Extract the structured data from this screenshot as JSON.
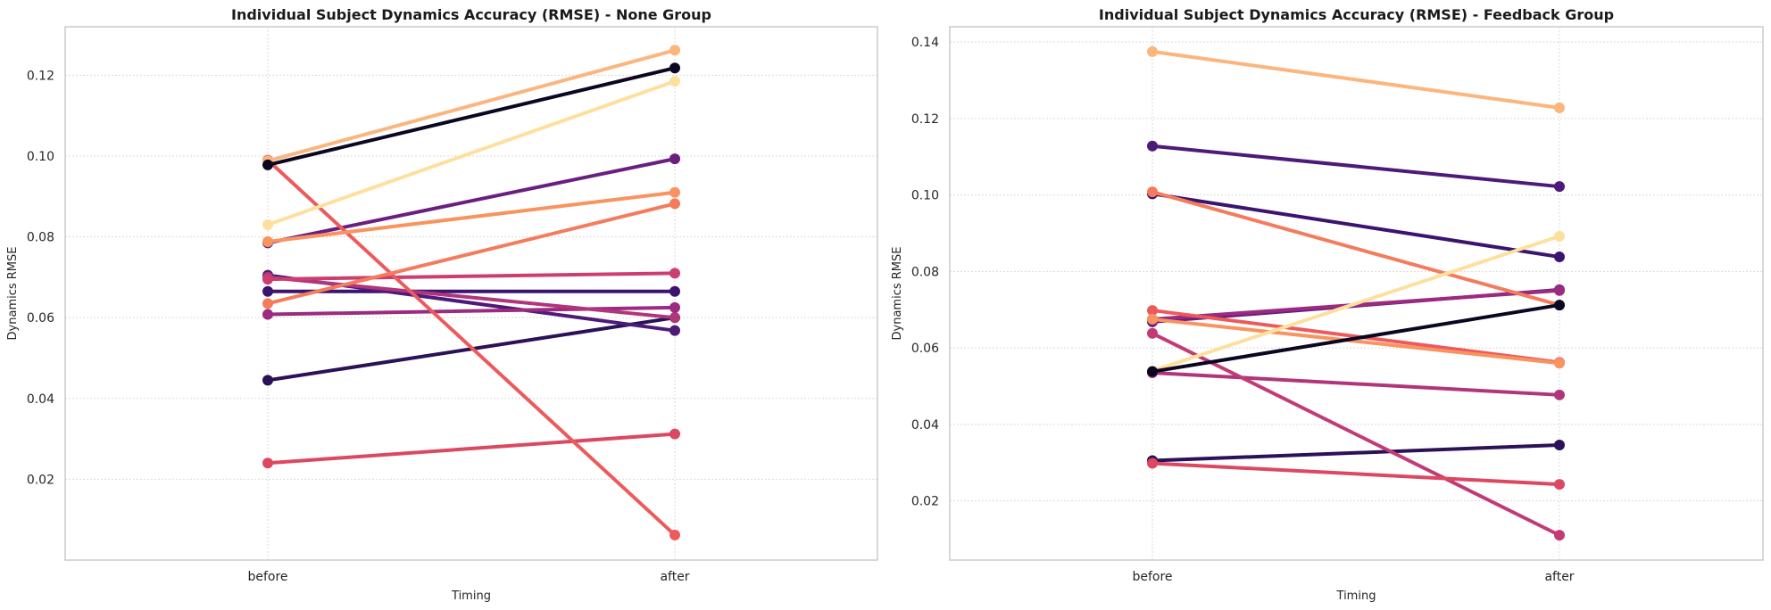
{
  "chart_data": [
    {
      "type": "line",
      "title": "Individual Subject Dynamics Accuracy (RMSE) - None Group",
      "xlabel": "Timing",
      "ylabel": "Dynamics RMSE",
      "categories": [
        "before",
        "after"
      ],
      "ylim": [
        0.0,
        0.132
      ],
      "yticks": [
        "0.02",
        "0.04",
        "0.06",
        "0.08",
        "0.10",
        "0.12"
      ],
      "grid": true,
      "series": [
        {
          "values": [
            0.0445,
            0.06
          ],
          "color": "#2a1158"
        },
        {
          "values": [
            0.0665,
            0.0665
          ],
          "color": "#3b1470"
        },
        {
          "values": [
            0.0705,
            0.0568
          ],
          "color": "#4d1a7a"
        },
        {
          "values": [
            0.0785,
            0.0993
          ],
          "color": "#6a1f80"
        },
        {
          "values": [
            0.0608,
            0.0625
          ],
          "color": "#9c2a7f"
        },
        {
          "values": [
            0.07,
            0.06
          ],
          "color": "#b0357a"
        },
        {
          "values": [
            0.0695,
            0.071
          ],
          "color": "#cc3e72"
        },
        {
          "values": [
            0.024,
            0.0312
          ],
          "color": "#dc4862"
        },
        {
          "values": [
            0.099,
            0.0062
          ],
          "color": "#ec5a5c"
        },
        {
          "values": [
            0.0635,
            0.0882
          ],
          "color": "#f47b5c"
        },
        {
          "values": [
            0.0788,
            0.091
          ],
          "color": "#f9935f"
        },
        {
          "values": [
            0.0988,
            0.1262
          ],
          "color": "#fbb57d"
        },
        {
          "values": [
            0.083,
            0.1185
          ],
          "color": "#fde09e"
        },
        {
          "values": [
            0.0978,
            0.1218
          ],
          "color": "#0b0721"
        }
      ]
    },
    {
      "type": "line",
      "title": "Individual Subject Dynamics Accuracy (RMSE) - Feedback Group",
      "xlabel": "Timing",
      "ylabel": "Dynamics RMSE",
      "categories": [
        "before",
        "after"
      ],
      "ylim": [
        0.0045,
        0.144
      ],
      "yticks": [
        "0.02",
        "0.04",
        "0.06",
        "0.08",
        "0.10",
        "0.12",
        "0.14"
      ],
      "grid": true,
      "series": [
        {
          "values": [
            0.0305,
            0.0346
          ],
          "color": "#2a1158"
        },
        {
          "values": [
            0.1003,
            0.0838
          ],
          "color": "#3b1470"
        },
        {
          "values": [
            0.1128,
            0.1022
          ],
          "color": "#4d1a7a"
        },
        {
          "values": [
            0.0668,
            0.0752
          ],
          "color": "#6a1f80"
        },
        {
          "values": [
            0.0675,
            0.075
          ],
          "color": "#9c2a7f"
        },
        {
          "values": [
            0.0535,
            0.0477
          ],
          "color": "#b0357a"
        },
        {
          "values": [
            0.0638,
            0.011
          ],
          "color": "#c23b75"
        },
        {
          "values": [
            0.0298,
            0.0243
          ],
          "color": "#dc4862"
        },
        {
          "values": [
            0.0698,
            0.0562
          ],
          "color": "#ec5a5c"
        },
        {
          "values": [
            0.1008,
            0.0712
          ],
          "color": "#f47b5c"
        },
        {
          "values": [
            0.0675,
            0.056
          ],
          "color": "#f9935f"
        },
        {
          "values": [
            0.1375,
            0.1228
          ],
          "color": "#fbb57d"
        },
        {
          "values": [
            0.054,
            0.0892
          ],
          "color": "#fde09e"
        },
        {
          "values": [
            0.0538,
            0.0712
          ],
          "color": "#0b0721"
        }
      ]
    }
  ]
}
